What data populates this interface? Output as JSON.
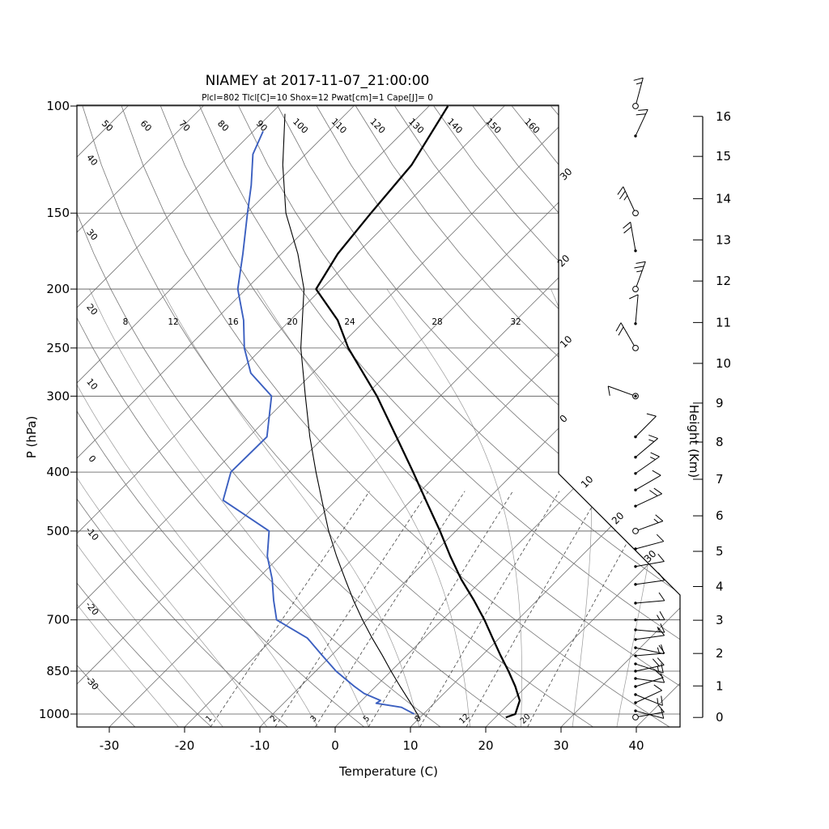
{
  "header": {
    "title": "NIAMEY at 2017-11-07_21:00:00",
    "params_line": "Plcl=802 Tlcl[C]=10 Shox=12 Pwat[cm]=1 Cape[J]= 0",
    "params_color": "#c25e1e"
  },
  "axes": {
    "pressure": {
      "label": "P (hPa)",
      "ticks": [
        100,
        150,
        200,
        250,
        300,
        400,
        500,
        700,
        850,
        1000
      ]
    },
    "temperature": {
      "label": "Temperature (C)",
      "ticks": [
        -30,
        -20,
        -10,
        0,
        10,
        20,
        30,
        40
      ]
    },
    "height": {
      "label": "Height (Km)",
      "ticks": [
        0,
        1,
        2,
        3,
        4,
        5,
        6,
        7,
        8,
        9,
        10,
        11,
        12,
        13,
        14,
        15,
        16
      ],
      "tick_pressures_hPa": [
        1013,
        899,
        795,
        701,
        617,
        540,
        472,
        411,
        357,
        308,
        265,
        227,
        194,
        166,
        142,
        121,
        104
      ]
    }
  },
  "skewt_labels": {
    "dry_adiabat_top": [
      "50",
      "60",
      "70",
      "80",
      "90",
      "100",
      "110",
      "120",
      "130",
      "140",
      "150",
      "160"
    ],
    "dry_adiabat_left": [
      "40",
      "30",
      "20",
      "10",
      "0",
      "-10",
      "-20",
      "-30"
    ],
    "isotherm_right": [
      "30",
      "20",
      "10",
      "0",
      "10",
      "20",
      "30"
    ],
    "moist_adiabat_row": [
      "8",
      "12",
      "16",
      "20",
      "24",
      "28",
      "32"
    ],
    "mixing_ratio_bottom": [
      "1",
      "2",
      "3",
      "5",
      "8",
      "12",
      "20"
    ]
  },
  "chart_data": {
    "type": "line",
    "subtype": "skewt_logp_sounding",
    "station": "NIAMEY",
    "datetime": "2017-11-07_21:00:00",
    "parameters": {
      "Plcl_hPa": 802,
      "Tlcl_C": 10,
      "Shox": 12,
      "Pwat_cm": 1,
      "Cape_J": 0
    },
    "pressure_axis_hPa": [
      100,
      1050
    ],
    "temperature_axis_C": [
      -30,
      40
    ],
    "height_axis_km": [
      0,
      16
    ],
    "isotherms_C": {
      "from": -120,
      "to": 40,
      "step": 10
    },
    "dry_adiabats_theta_C": {
      "from": -30,
      "to": 160,
      "step": 10
    },
    "moist_adiabats_thetaw_C": [
      -24,
      -18,
      -12,
      -5,
      2,
      9,
      16,
      23,
      30,
      36
    ],
    "mixing_ratio_lines_g_kg": [
      1,
      2,
      3,
      5,
      8,
      12,
      20
    ],
    "series": {
      "temperature": [
        [
          1013,
          21.4
        ],
        [
          1000,
          22.2
        ],
        [
          950,
          21.0
        ],
        [
          900,
          18.5
        ],
        [
          850,
          15.6
        ],
        [
          800,
          12.4
        ],
        [
          750,
          9.1
        ],
        [
          700,
          5.6
        ],
        [
          650,
          1.6
        ],
        [
          600,
          -2.9
        ],
        [
          550,
          -7.4
        ],
        [
          500,
          -12.1
        ],
        [
          450,
          -17.5
        ],
        [
          400,
          -23.5
        ],
        [
          350,
          -30.4
        ],
        [
          300,
          -38.4
        ],
        [
          250,
          -48.6
        ],
        [
          225,
          -53.7
        ],
        [
          200,
          -60.7
        ],
        [
          175,
          -62.5
        ],
        [
          150,
          -63.5
        ],
        [
          125,
          -64.5
        ],
        [
          100,
          -67.5
        ]
      ],
      "dewpoint": [
        [
          1000,
          8.8
        ],
        [
          975,
          6.2
        ],
        [
          960,
          2.3
        ],
        [
          950,
          2.5
        ],
        [
          925,
          -0.6
        ],
        [
          900,
          -2.9
        ],
        [
          850,
          -7.3
        ],
        [
          800,
          -11.3
        ],
        [
          750,
          -15.5
        ],
        [
          700,
          -22.0
        ],
        [
          650,
          -25.0
        ],
        [
          600,
          -28.0
        ],
        [
          550,
          -31.7
        ],
        [
          500,
          -34.8
        ],
        [
          445,
          -45.0
        ],
        [
          400,
          -47.7
        ],
        [
          350,
          -47.6
        ],
        [
          300,
          -52.4
        ],
        [
          275,
          -58.2
        ],
        [
          250,
          -62.4
        ],
        [
          225,
          -66.2
        ],
        [
          200,
          -71.1
        ],
        [
          175,
          -75.1
        ],
        [
          150,
          -79.9
        ],
        [
          135,
          -83.1
        ],
        [
          120,
          -87.0
        ],
        [
          110,
          -88.7
        ]
      ],
      "parcel": [
        [
          1013,
          9.9
        ],
        [
          1000,
          9.2
        ],
        [
          950,
          6.3
        ],
        [
          900,
          3.2
        ],
        [
          850,
          0.0
        ],
        [
          800,
          -3.3
        ],
        [
          750,
          -6.9
        ],
        [
          700,
          -10.6
        ],
        [
          650,
          -14.4
        ],
        [
          600,
          -18.3
        ],
        [
          550,
          -22.5
        ],
        [
          500,
          -26.9
        ],
        [
          450,
          -31.4
        ],
        [
          400,
          -36.4
        ],
        [
          350,
          -41.9
        ],
        [
          300,
          -47.9
        ],
        [
          250,
          -54.9
        ],
        [
          200,
          -62.3
        ],
        [
          175,
          -67.8
        ],
        [
          150,
          -74.8
        ],
        [
          125,
          -81.6
        ],
        [
          103,
          -88.1
        ]
      ]
    },
    "wind_barbs": [
      {
        "p": 100,
        "mk": "circle",
        "dir": 75,
        "spd": 15
      },
      {
        "p": 112,
        "mk": "dot",
        "dir": 65,
        "spd": 20
      },
      {
        "p": 150,
        "mk": "circle",
        "dir": 115,
        "spd": 25
      },
      {
        "p": 173,
        "mk": "dot",
        "dir": 100,
        "spd": 20
      },
      {
        "p": 200,
        "mk": "circle",
        "dir": 70,
        "spd": 25
      },
      {
        "p": 228,
        "mk": "dot",
        "dir": 85,
        "spd": 10
      },
      {
        "p": 250,
        "mk": "circle",
        "dir": 120,
        "spd": 20
      },
      {
        "p": 300,
        "mk": "circle-dot",
        "dir": 160,
        "spd": 10
      },
      {
        "p": 350,
        "mk": "dot",
        "dir": 45,
        "spd": 10
      },
      {
        "p": 378,
        "mk": "dot",
        "dir": 40,
        "spd": 15
      },
      {
        "p": 402,
        "mk": "dot",
        "dir": 35,
        "spd": 15
      },
      {
        "p": 428,
        "mk": "dot",
        "dir": 30,
        "spd": 10
      },
      {
        "p": 455,
        "mk": "dot",
        "dir": 25,
        "spd": 20
      },
      {
        "p": 500,
        "mk": "circle",
        "dir": 20,
        "spd": 15
      },
      {
        "p": 535,
        "mk": "dot",
        "dir": 15,
        "spd": 10
      },
      {
        "p": 572,
        "mk": "dot",
        "dir": 10,
        "spd": 10
      },
      {
        "p": 612,
        "mk": "dot",
        "dir": 8,
        "spd": 10
      },
      {
        "p": 657,
        "mk": "dot",
        "dir": 5,
        "spd": 10
      },
      {
        "p": 700,
        "mk": "dot",
        "dir": 0,
        "spd": 15
      },
      {
        "p": 727,
        "mk": "dot",
        "dir": -5,
        "spd": 15
      },
      {
        "p": 754,
        "mk": "dot",
        "dir": 8,
        "spd": 10
      },
      {
        "p": 778,
        "mk": "dot",
        "dir": -12,
        "spd": 15
      },
      {
        "p": 802,
        "mk": "dot",
        "dir": 5,
        "spd": 10
      },
      {
        "p": 827,
        "mk": "dot",
        "dir": -18,
        "spd": 15
      },
      {
        "p": 850,
        "mk": "dot",
        "dir": 12,
        "spd": 20
      },
      {
        "p": 874,
        "mk": "dot",
        "dir": -8,
        "spd": 10
      },
      {
        "p": 901,
        "mk": "dot",
        "dir": 18,
        "spd": 10
      },
      {
        "p": 929,
        "mk": "dot",
        "dir": -22,
        "spd": 15
      },
      {
        "p": 958,
        "mk": "dot",
        "dir": 25,
        "spd": 10
      },
      {
        "p": 988,
        "mk": "dot",
        "dir": -15,
        "spd": 10
      },
      {
        "p": 1012,
        "mk": "circle",
        "dir": 10,
        "spd": 10
      }
    ],
    "colors": {
      "temperature": "#000000",
      "dewpoint": "#3b5fc0",
      "parcel": "#000000",
      "grid": "#777777",
      "moist_adiabat": "#9a9a9a",
      "mixing_ratio": "#444444",
      "params_text": "#c25e1e"
    },
    "legend": null,
    "grid": true
  }
}
